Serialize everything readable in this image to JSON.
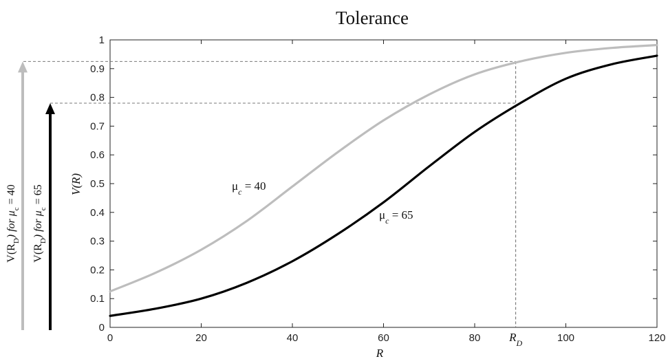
{
  "chart_data": {
    "type": "line",
    "title": "Tolerance",
    "xlabel": "R",
    "ylabel": "V(R)",
    "xlim": [
      0,
      120
    ],
    "ylim": [
      0,
      1
    ],
    "xticks": [
      0,
      20,
      40,
      60,
      80,
      100,
      120
    ],
    "yticks": [
      0,
      0.1,
      0.2,
      0.3,
      0.4,
      0.5,
      0.6,
      0.7,
      0.8,
      0.9,
      1
    ],
    "grid": false,
    "x": [
      0,
      10,
      20,
      30,
      40,
      50,
      60,
      70,
      80,
      90,
      100,
      110,
      120
    ],
    "series": [
      {
        "label": "μc = 40",
        "color": "#bdbdbd",
        "values": [
          0.125,
          0.19,
          0.27,
          0.37,
          0.49,
          0.61,
          0.72,
          0.81,
          0.88,
          0.925,
          0.955,
          0.972,
          0.982
        ]
      },
      {
        "label": "μc = 65",
        "color": "#000000",
        "values": [
          0.04,
          0.065,
          0.1,
          0.155,
          0.23,
          0.325,
          0.435,
          0.56,
          0.68,
          0.78,
          0.865,
          0.915,
          0.945
        ]
      }
    ],
    "marker": {
      "label": "R_D",
      "x": 89,
      "y_high": 0.925,
      "y_low": 0.78
    },
    "side_arrows": [
      {
        "label": "V(R_D) for μc = 40",
        "color": "#bdbdbd",
        "value": 0.925
      },
      {
        "label": "V(R_D) for μc = 65",
        "color": "#000000",
        "value": 0.78
      }
    ]
  }
}
